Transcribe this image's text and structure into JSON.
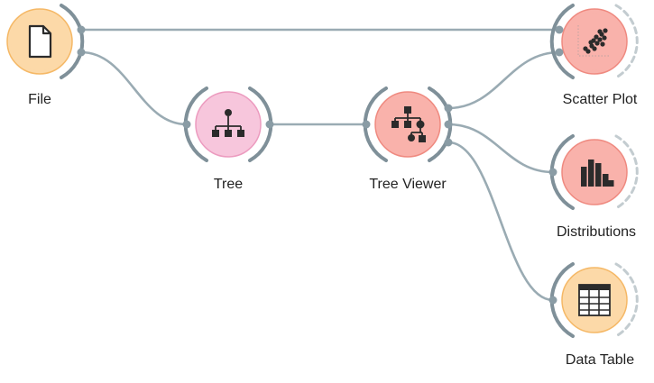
{
  "workflow": {
    "nodes": [
      {
        "id": "file",
        "label": "File",
        "icon": "file-icon",
        "color": "#fcd9a8",
        "rim": "#f5b866"
      },
      {
        "id": "tree",
        "label": "Tree",
        "icon": "hierarchy-tree-icon",
        "color": "#f7c6dc",
        "rim": "#ec9bbf"
      },
      {
        "id": "tree_viewer",
        "label": "Tree Viewer",
        "icon": "tree-viewer-icon",
        "color": "#f9b2ab",
        "rim": "#ef8a80"
      },
      {
        "id": "scatter_plot",
        "label": "Scatter Plot",
        "icon": "scatter-plot-icon",
        "color": "#f9b2ab",
        "rim": "#ef8a80"
      },
      {
        "id": "distributions",
        "label": "Distributions",
        "icon": "bar-chart-icon",
        "color": "#f9b2ab",
        "rim": "#ef8a80"
      },
      {
        "id": "data_table",
        "label": "Data Table",
        "icon": "table-icon",
        "color": "#fcd9a8",
        "rim": "#f5b866"
      }
    ],
    "links": [
      {
        "from": "file",
        "to": "scatter_plot"
      },
      {
        "from": "file",
        "to": "tree"
      },
      {
        "from": "tree",
        "to": "tree_viewer"
      },
      {
        "from": "tree_viewer",
        "to": "scatter_plot"
      },
      {
        "from": "tree_viewer",
        "to": "distributions"
      },
      {
        "from": "tree_viewer",
        "to": "data_table"
      }
    ],
    "link_color": "#9aabb3"
  }
}
